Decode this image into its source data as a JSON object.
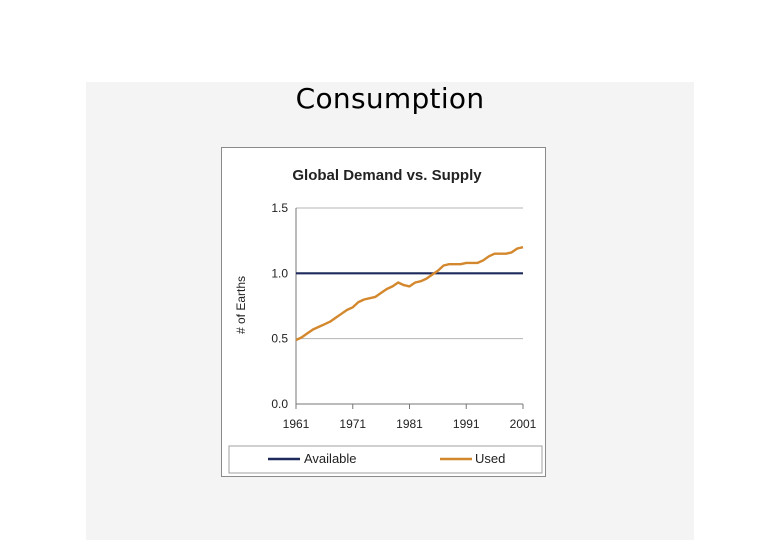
{
  "slide": {
    "title": "Consumption"
  },
  "chart_data": {
    "type": "line",
    "title": "Global Demand vs. Supply",
    "xlabel": "",
    "ylabel": "# of Earths",
    "xlim": [
      1961,
      2001
    ],
    "ylim": [
      0.0,
      1.5
    ],
    "x_ticks": [
      "1961",
      "1971",
      "1981",
      "1991",
      "2001"
    ],
    "y_ticks": [
      "0.0",
      "0.5",
      "1.0",
      "1.5"
    ],
    "y_tick_values": [
      0.0,
      0.5,
      1.0,
      1.5
    ],
    "x_tick_values": [
      1961,
      1971,
      1981,
      1991,
      2001
    ],
    "grid": true,
    "legend_position": "bottom",
    "x": [
      1961,
      1962,
      1963,
      1964,
      1965,
      1966,
      1967,
      1968,
      1969,
      1970,
      1971,
      1972,
      1973,
      1974,
      1975,
      1976,
      1977,
      1978,
      1979,
      1980,
      1981,
      1982,
      1983,
      1984,
      1985,
      1986,
      1987,
      1988,
      1989,
      1990,
      1991,
      1992,
      1993,
      1994,
      1995,
      1996,
      1997,
      1998,
      1999,
      2000,
      2001
    ],
    "series": [
      {
        "name": "Available",
        "color": "#1f2a5c",
        "values": [
          1.0,
          1.0,
          1.0,
          1.0,
          1.0,
          1.0,
          1.0,
          1.0,
          1.0,
          1.0,
          1.0,
          1.0,
          1.0,
          1.0,
          1.0,
          1.0,
          1.0,
          1.0,
          1.0,
          1.0,
          1.0,
          1.0,
          1.0,
          1.0,
          1.0,
          1.0,
          1.0,
          1.0,
          1.0,
          1.0,
          1.0,
          1.0,
          1.0,
          1.0,
          1.0,
          1.0,
          1.0,
          1.0,
          1.0,
          1.0,
          1.0
        ]
      },
      {
        "name": "Used",
        "color": "#d4882e",
        "values": [
          0.49,
          0.51,
          0.54,
          0.57,
          0.59,
          0.61,
          0.63,
          0.66,
          0.69,
          0.72,
          0.74,
          0.78,
          0.8,
          0.81,
          0.82,
          0.85,
          0.88,
          0.9,
          0.93,
          0.91,
          0.9,
          0.93,
          0.94,
          0.96,
          0.99,
          1.02,
          1.06,
          1.07,
          1.07,
          1.07,
          1.08,
          1.08,
          1.08,
          1.1,
          1.13,
          1.15,
          1.15,
          1.15,
          1.16,
          1.19,
          1.2
        ]
      }
    ]
  }
}
